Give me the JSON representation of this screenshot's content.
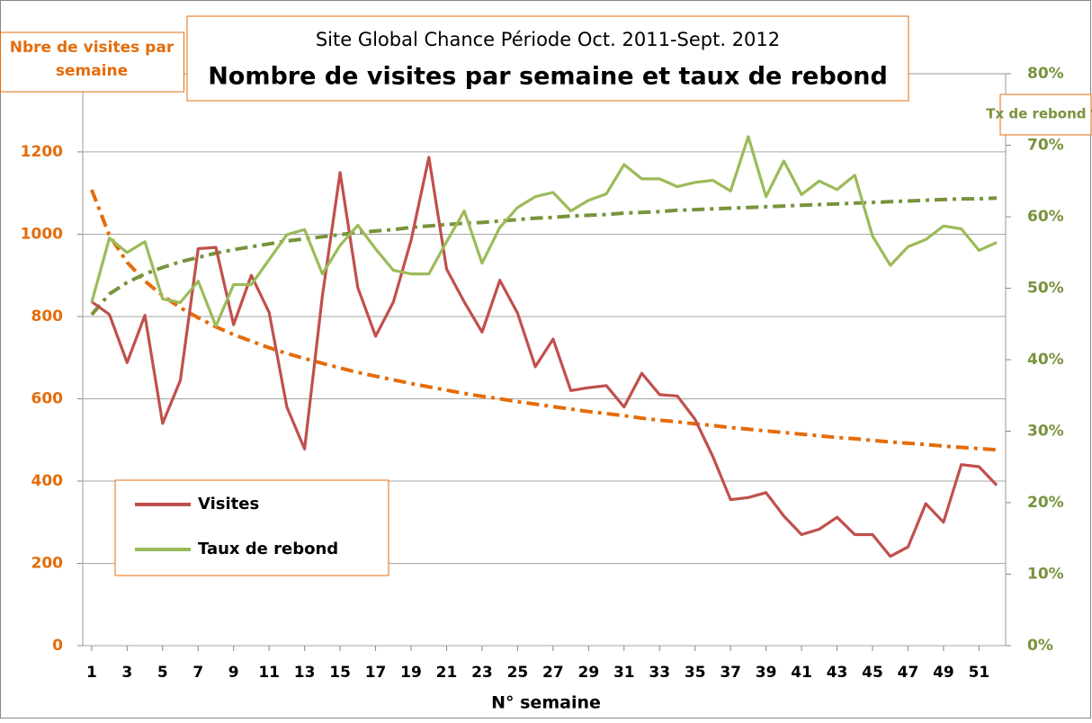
{
  "chart_data": {
    "type": "line",
    "title": "Site Global Chance Période Oct. 2011-Sept. 2012",
    "subtitle": "Nombre de visites par semaine et taux de rebond",
    "ylabel": "Nbre de visites par semaine",
    "y2label": "Tx de rebond %",
    "xlabel": "N° semaine",
    "x": [
      1,
      2,
      3,
      4,
      5,
      6,
      7,
      8,
      9,
      10,
      11,
      12,
      13,
      14,
      15,
      16,
      17,
      18,
      19,
      20,
      21,
      22,
      23,
      24,
      25,
      26,
      27,
      28,
      29,
      30,
      31,
      32,
      33,
      34,
      35,
      36,
      37,
      38,
      39,
      40,
      41,
      42,
      43,
      44,
      45,
      46,
      47,
      48,
      49,
      50,
      51,
      52
    ],
    "xlim": [
      0.5,
      52.5
    ],
    "xticks": [
      1,
      3,
      5,
      7,
      9,
      11,
      13,
      15,
      17,
      19,
      21,
      23,
      25,
      27,
      29,
      31,
      33,
      35,
      37,
      39,
      41,
      43,
      45,
      47,
      49,
      51
    ],
    "ylim": [
      0,
      1390
    ],
    "yticks": [
      0,
      200,
      400,
      600,
      800,
      1000,
      1200
    ],
    "y2lim": [
      0,
      80
    ],
    "y2ticks": [
      {
        "value": 0,
        "label": "0%"
      },
      {
        "value": 10,
        "label": "10%"
      },
      {
        "value": 20,
        "label": "20%"
      },
      {
        "value": 30,
        "label": "30%"
      },
      {
        "value": 40,
        "label": "40%"
      },
      {
        "value": 50,
        "label": "50%"
      },
      {
        "value": 60,
        "label": "60%"
      },
      {
        "value": 70,
        "label": "70%"
      },
      {
        "value": 80,
        "label": "80%"
      }
    ],
    "grid": true,
    "legend": "lower left",
    "series": [
      {
        "name": "Visites",
        "color": "#c0504d",
        "values": [
          836,
          805,
          688,
          803,
          540,
          645,
          965,
          968,
          780,
          900,
          810,
          580,
          478,
          850,
          1150,
          870,
          752,
          835,
          985,
          1187,
          915,
          835,
          762,
          888,
          808,
          678,
          745,
          620,
          627,
          632,
          580,
          662,
          610,
          607,
          550,
          460,
          355,
          360,
          372,
          315,
          270,
          283,
          312,
          270,
          270,
          217,
          240,
          345,
          300,
          440,
          435,
          390
        ]
      },
      {
        "name": "Taux de rebond",
        "color": "#9bbb59",
        "axis": "y2",
        "values": [
          48,
          57,
          55,
          56.5,
          48.5,
          48,
          51,
          44.7,
          50.5,
          50.5,
          54,
          57.5,
          58.2,
          52,
          56,
          58.8,
          55.5,
          52.5,
          52,
          52,
          56.5,
          60.8,
          53.5,
          58.5,
          61.3,
          62.8,
          63.4,
          60.8,
          62.3,
          63.2,
          67.3,
          65.3,
          65.3,
          64.2,
          64.8,
          65.1,
          63.6,
          71.2,
          62.8,
          67.8,
          63.1,
          65,
          63.8,
          65.8,
          57.3,
          53.2,
          55.8,
          56.8,
          58.7,
          58.3,
          55.3,
          56.4
        ]
      }
    ],
    "trendlines": [
      {
        "color": "#e46c0a",
        "values": [
          1108,
          997,
          932,
          886,
          851,
          821,
          797,
          775,
          756,
          740,
          724,
          710,
          698,
          686,
          675,
          664,
          655,
          646,
          637,
          629,
          621,
          613,
          606,
          600,
          593,
          587,
          581,
          575,
          569,
          564,
          559,
          553,
          548,
          544,
          539,
          535,
          530,
          526,
          522,
          518,
          514,
          510,
          506,
          503,
          499,
          495,
          492,
          489,
          485,
          482,
          479,
          476
        ]
      },
      {
        "color": "#77933c",
        "axis": "y2",
        "values": [
          46.3,
          49.2,
          50.8,
          52.0,
          52.9,
          53.7,
          54.3,
          54.9,
          55.4,
          55.8,
          56.2,
          56.6,
          56.9,
          57.2,
          57.5,
          57.8,
          58.0,
          58.2,
          58.5,
          58.7,
          58.9,
          59.1,
          59.2,
          59.4,
          59.6,
          59.8,
          59.9,
          60.1,
          60.2,
          60.3,
          60.5,
          60.6,
          60.7,
          60.9,
          61.0,
          61.1,
          61.2,
          61.3,
          61.4,
          61.5,
          61.6,
          61.7,
          61.8,
          61.9,
          62.0,
          62.1,
          62.2,
          62.3,
          62.4,
          62.5,
          62.5,
          62.6
        ]
      }
    ]
  }
}
